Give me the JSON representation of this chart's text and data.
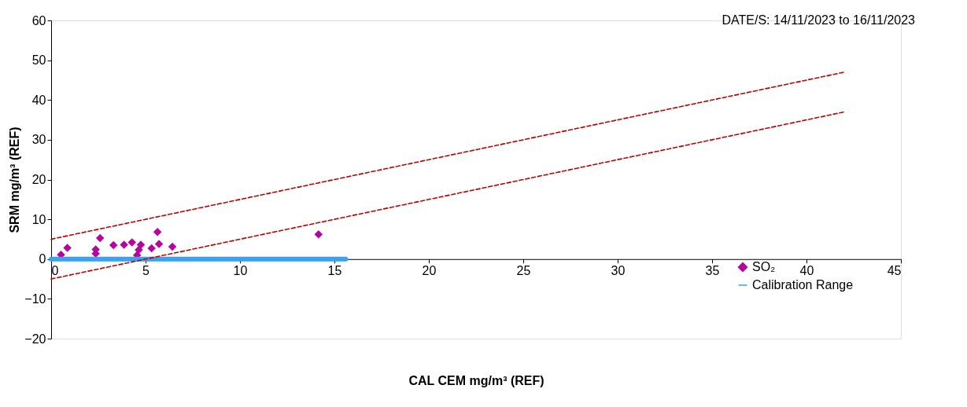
{
  "chart_data": {
    "type": "scatter",
    "xlabel": "CAL CEM mg/m³ (REF)",
    "ylabel": "SRM mg/m³ (REF)",
    "annotations": [
      "DATE/S: 14/11/2023 to 16/11/2023"
    ],
    "xlim": [
      0,
      45
    ],
    "xticks": [
      0,
      5,
      10,
      15,
      20,
      25,
      30,
      35,
      40,
      45
    ],
    "ylim": [
      -20,
      60
    ],
    "yticks": [
      -20,
      -10,
      0,
      10,
      20,
      30,
      40,
      50,
      60
    ],
    "grid": false,
    "legend": "bottom right",
    "series": [
      {
        "name": "SO₂",
        "marker": "diamond",
        "color": "#b5049f",
        "x": [
          0.52,
          0.86,
          2.36,
          2.36,
          2.59,
          3.3,
          3.86,
          4.28,
          4.55,
          4.64,
          4.75,
          5.32,
          5.63,
          5.71,
          6.42,
          14.16
        ],
        "values": [
          1.1,
          2.8,
          2.4,
          1.4,
          5.3,
          3.5,
          3.6,
          4.2,
          1.0,
          2.3,
          3.6,
          2.7,
          6.8,
          3.8,
          3.1,
          6.2
        ]
      },
      {
        "name": "Calibration Range",
        "type": "line",
        "color": "#3aa0f0",
        "line_style": "solid",
        "x": [
          0,
          15.6
        ],
        "values": [
          0,
          0
        ]
      },
      {
        "type": "line",
        "color": "#c00000",
        "line_style": "dashed",
        "x": [
          0,
          42
        ],
        "values": [
          5,
          47
        ]
      },
      {
        "type": "line",
        "color": "#c00000",
        "line_style": "dashed",
        "x": [
          0,
          42
        ],
        "values": [
          -5,
          37
        ]
      }
    ]
  }
}
